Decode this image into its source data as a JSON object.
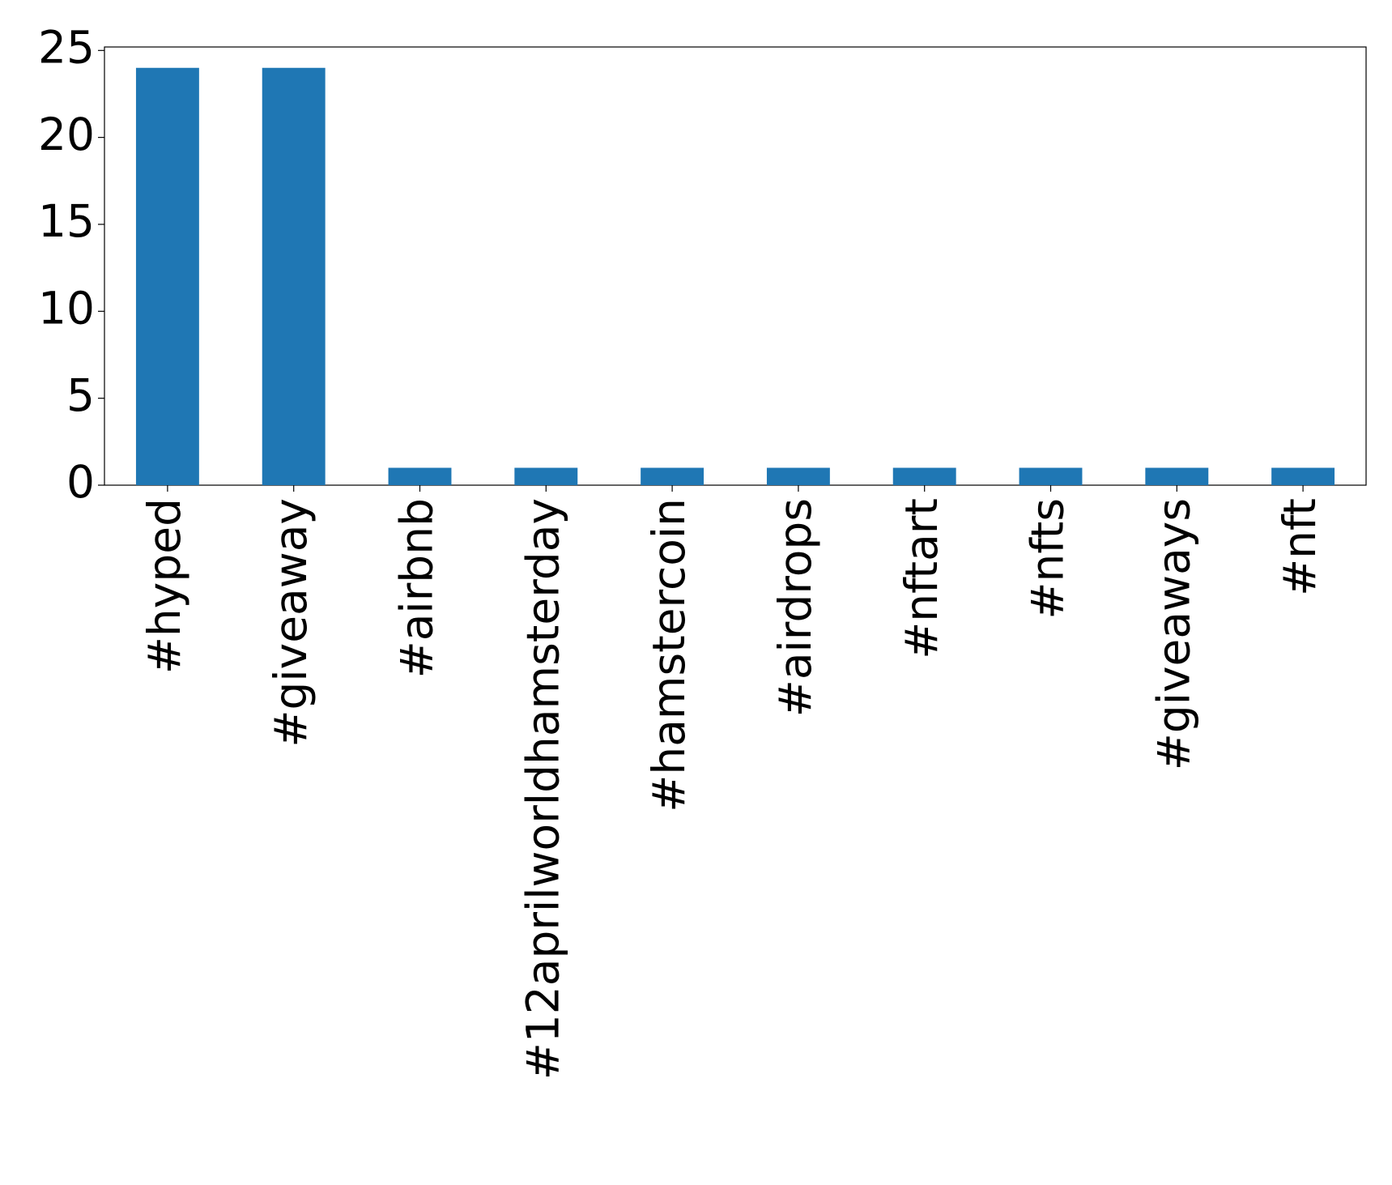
{
  "chart_data": {
    "type": "bar",
    "categories": [
      "#hyped",
      "#giveaway",
      "#airbnb",
      "#12aprilworldhamsterday",
      "#hamstercoin",
      "#airdrops",
      "#nftart",
      "#nfts",
      "#giveaways",
      "#nft"
    ],
    "values": [
      24,
      24,
      1,
      1,
      1,
      1,
      1,
      1,
      1,
      1
    ],
    "color": "#1f77b4",
    "ylim": [
      0,
      25.2
    ],
    "yticks": [
      0,
      5,
      10,
      15,
      20,
      25
    ],
    "grid": false
  }
}
